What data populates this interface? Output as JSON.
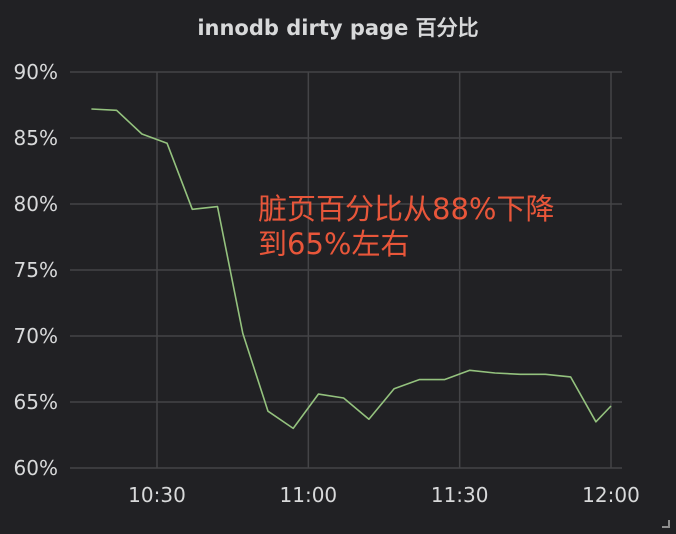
{
  "panel": {
    "title": "innodb dirty page 百分比",
    "annotation_line1": "脏页百分比从88%下降",
    "annotation_line2": "到65%左右"
  },
  "colors": {
    "background": "#212124",
    "series": "#94c27e",
    "grid": "#444447",
    "text": "#d8d9da",
    "annotation": "#e8563a"
  },
  "chart_data": {
    "type": "line",
    "title": "innodb dirty page 百分比",
    "xlabel": "",
    "ylabel": "",
    "ylim": [
      60,
      90
    ],
    "xlim": [
      "10:15",
      "12:00"
    ],
    "grid": true,
    "legend": "none",
    "y_ticks": [
      "60%",
      "65%",
      "70%",
      "75%",
      "80%",
      "85%",
      "90%"
    ],
    "x_ticks": [
      "10:30",
      "11:00",
      "11:30",
      "12:00"
    ],
    "series": [
      {
        "x": [
          "10:17",
          "10:22",
          "10:27",
          "10:32",
          "10:37",
          "10:42",
          "10:47",
          "10:52",
          "10:57",
          "11:02",
          "11:07",
          "11:12",
          "11:17",
          "11:22",
          "11:27",
          "11:32",
          "11:37",
          "11:42",
          "11:47",
          "11:52",
          "11:57",
          "12:00"
        ],
        "values": [
          87.2,
          87.1,
          85.3,
          84.6,
          79.6,
          79.8,
          70.2,
          64.3,
          63.0,
          65.6,
          65.3,
          63.7,
          66.0,
          66.7,
          66.7,
          67.4,
          67.2,
          67.1,
          67.1,
          66.9,
          63.5,
          64.7
        ]
      }
    ],
    "annotations": [
      "脏页百分比从88%下降",
      "到65%左右"
    ]
  }
}
